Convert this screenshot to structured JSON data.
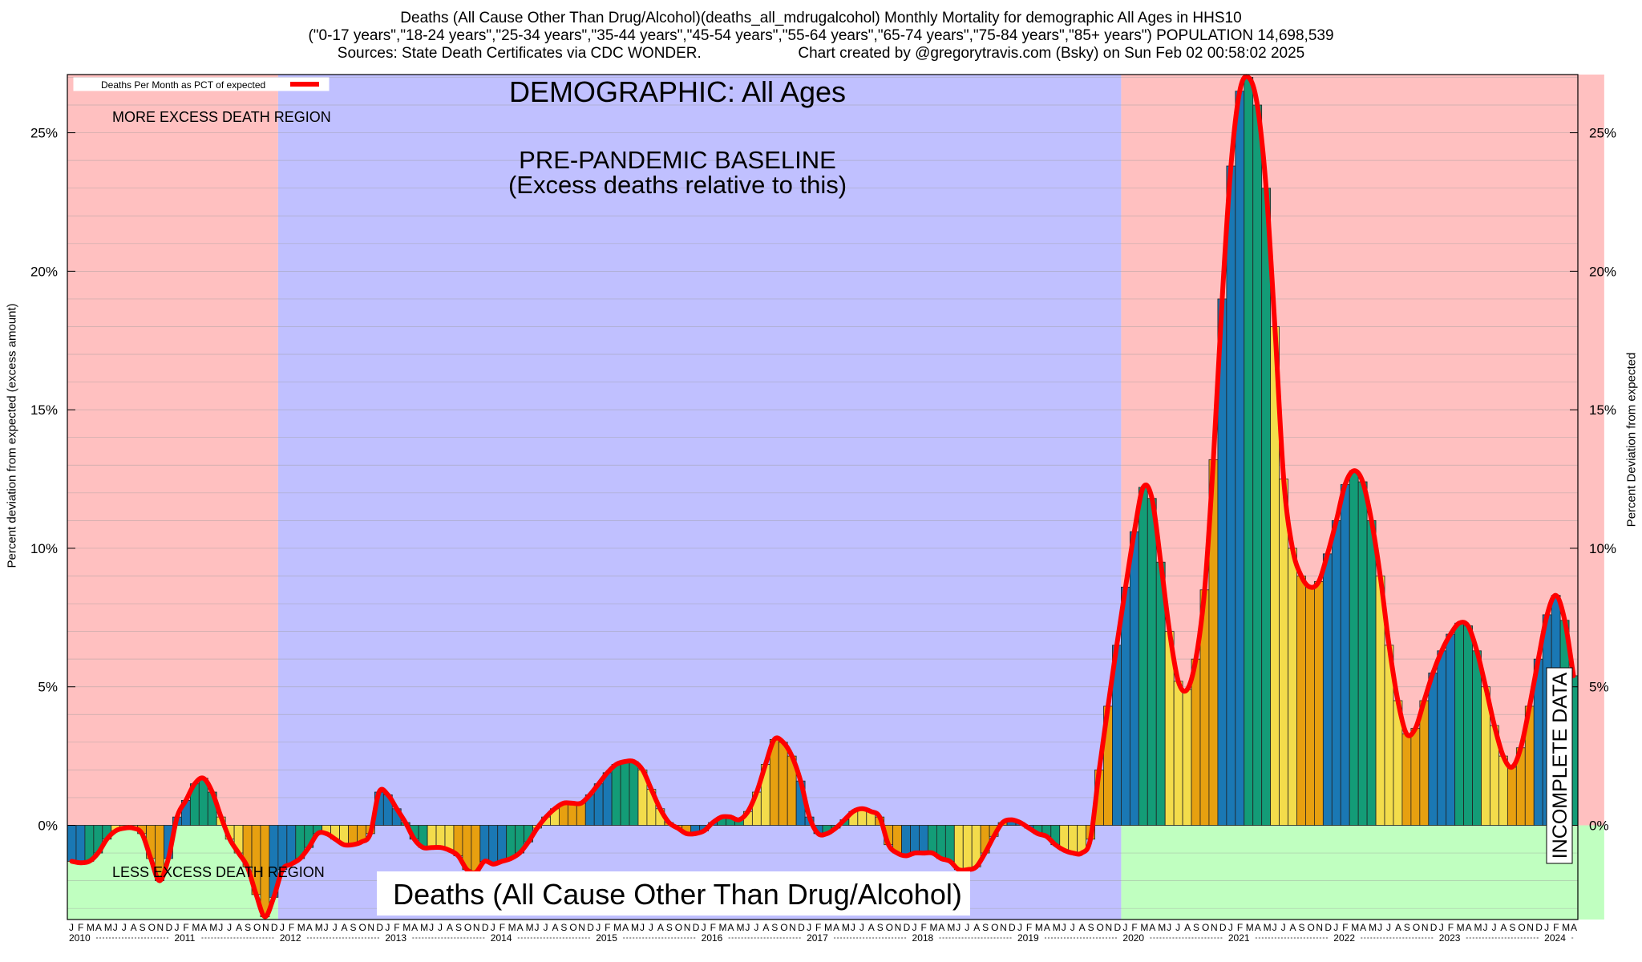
{
  "header": {
    "title": "Deaths (All Cause Other Than Drug/Alcohol)(deaths_all_mdrugalcohol) Monthly Mortality for demographic All Ages in HHS10",
    "subtitle": "(\"0-17 years\",\"18-24 years\",\"25-34 years\",\"35-44 years\",\"45-54 years\",\"55-64 years\",\"65-74 years\",\"75-84 years\",\"85+ years\") POPULATION 14,698,539",
    "sources": "Sources: State Death Certificates via CDC WONDER.",
    "credit": "Chart created by @gregorytravis.com (Bsky) on Sun Feb 02 00:58:02 2025"
  },
  "chart_data": {
    "type": "bar",
    "ylabel_left": "Percent deviation from expected (excess amount)",
    "ylabel_right": "Percent Deviation from expected",
    "ylim": [
      -3.4,
      27.1
    ],
    "yticks": [
      0,
      5,
      10,
      15,
      20,
      25
    ],
    "ytick_labels": [
      "0%",
      "5%",
      "10%",
      "15%",
      "20%",
      "25%"
    ],
    "legend": {
      "label": "Deaths Per Month as PCT of expected",
      "position": "top-left",
      "line_color": "#ff0000"
    },
    "annotations": {
      "demographic": "DEMOGRAPHIC: All Ages",
      "baseline_line1": "PRE-PANDEMIC BASELINE",
      "baseline_line2": "(Excess deaths relative to this)",
      "more_region": "MORE EXCESS DEATH REGION",
      "less_region": "LESS EXCESS DEATH REGION",
      "bottom_title": "Deaths (All Cause Other Than Drug/Alcohol)",
      "incomplete": "INCOMPLETE DATA"
    },
    "colors": {
      "more_region": "#ffc0c0",
      "less_region": "#c0ffc0",
      "baseline_region": "#c0c0ff",
      "winter": "#1a78b4",
      "spring": "#139c77",
      "summer": "#f3dc4b",
      "autumn": "#e7a010",
      "line": "#ff0000"
    },
    "month_letters": [
      "J",
      "F",
      "M",
      "A",
      "M",
      "J",
      "J",
      "A",
      "S",
      "O",
      "N",
      "D"
    ],
    "years": [
      "2010",
      "2011",
      "2012",
      "2013",
      "2014",
      "2015",
      "2016",
      "2017",
      "2018",
      "2019",
      "2020",
      "2021",
      "2022",
      "2023",
      "2024"
    ],
    "start": "2010-01",
    "baseline_years": [
      "2012",
      "2019"
    ],
    "incomplete_from": "2024-08",
    "values": [
      -1.3,
      -1.35,
      -1.3,
      -1.0,
      -0.5,
      -0.2,
      -0.1,
      -0.1,
      -0.3,
      -1.2,
      -2.0,
      -1.2,
      0.3,
      0.9,
      1.5,
      1.7,
      1.2,
      0.3,
      -0.5,
      -1.0,
      -1.5,
      -2.5,
      -3.3,
      -2.6,
      -1.6,
      -1.4,
      -1.2,
      -0.8,
      -0.3,
      -0.3,
      -0.5,
      -0.7,
      -0.7,
      -0.6,
      -0.3,
      1.2,
      1.1,
      0.6,
      0.1,
      -0.5,
      -0.8,
      -0.8,
      -0.8,
      -0.9,
      -1.1,
      -1.6,
      -1.7,
      -1.3,
      -1.4,
      -1.3,
      -1.2,
      -1.0,
      -0.6,
      -0.1,
      0.3,
      0.6,
      0.8,
      0.8,
      0.8,
      1.1,
      1.5,
      1.9,
      2.2,
      2.3,
      2.3,
      2.0,
      1.3,
      0.6,
      0.1,
      -0.1,
      -0.3,
      -0.3,
      -0.2,
      0.1,
      0.3,
      0.3,
      0.2,
      0.5,
      1.2,
      2.2,
      3.1,
      3.0,
      2.5,
      1.6,
      0.3,
      -0.3,
      -0.3,
      -0.1,
      0.2,
      0.5,
      0.6,
      0.5,
      0.3,
      -0.7,
      -1.0,
      -1.1,
      -1.0,
      -1.0,
      -1.0,
      -1.2,
      -1.3,
      -1.6,
      -1.6,
      -1.5,
      -1.0,
      -0.4,
      0.1,
      0.2,
      0.1,
      -0.1,
      -0.3,
      -0.4,
      -0.7,
      -0.9,
      -1.0,
      -1.0,
      -0.5,
      2.0,
      4.3,
      6.5,
      8.6,
      10.6,
      12.2,
      11.8,
      9.5,
      7.0,
      5.2,
      4.9,
      6.0,
      8.5,
      13.2,
      19.0,
      23.8,
      26.5,
      27.0,
      26.0,
      23.0,
      18.0,
      12.5,
      10.0,
      9.0,
      8.6,
      8.8,
      9.8,
      11.0,
      12.3,
      12.8,
      12.4,
      11.0,
      9.0,
      6.5,
      4.5,
      3.3,
      3.5,
      4.5,
      5.5,
      6.3,
      6.9,
      7.3,
      7.2,
      6.3,
      5.0,
      3.6,
      2.5,
      2.1,
      2.8,
      4.3,
      6.0,
      7.6,
      8.3,
      7.4,
      5.4
    ]
  }
}
